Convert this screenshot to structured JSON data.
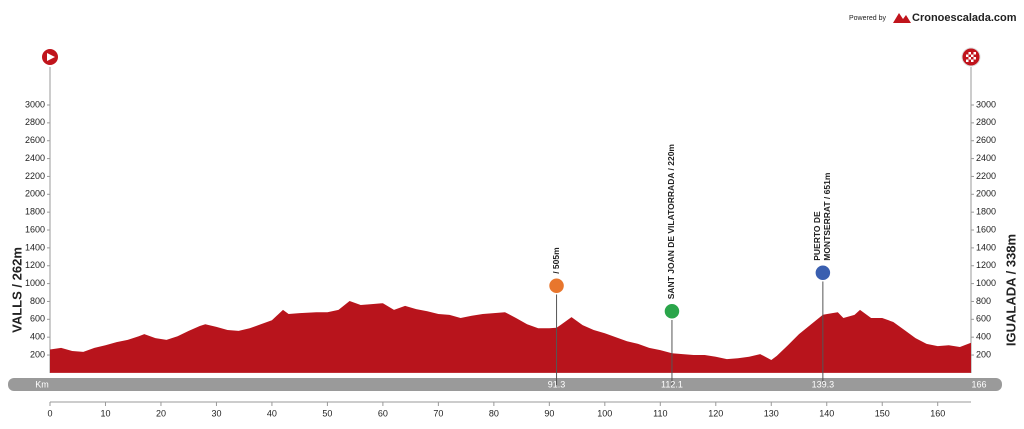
{
  "header": {
    "powered_by": "Powered by",
    "brand": "Cronoescalada.com"
  },
  "chart_data": {
    "type": "area",
    "start_label": "VALLS / 262m",
    "finish_label": "IGUALADA / 338m",
    "x_label": "Km",
    "color": "#b8141c",
    "x": [
      0,
      2,
      4,
      6,
      8,
      10,
      12,
      14,
      16,
      17,
      19,
      21,
      23,
      25,
      27,
      28,
      30,
      32,
      34,
      36,
      38,
      40,
      42,
      43,
      45,
      48,
      50,
      52,
      54,
      56,
      58,
      60,
      62,
      64,
      66,
      68,
      70,
      72,
      74,
      76,
      78,
      80,
      82,
      84,
      86,
      88,
      90,
      91.3,
      92,
      94,
      96,
      98,
      100,
      102,
      104,
      106,
      108,
      110,
      112.1,
      114,
      116,
      118,
      120,
      122,
      124,
      126,
      128,
      130,
      131,
      133,
      135,
      137,
      139.3,
      141,
      142,
      143,
      145,
      146,
      148,
      150,
      152,
      154,
      156,
      158,
      160,
      162,
      164,
      166
    ],
    "values": [
      262,
      280,
      245,
      235,
      280,
      310,
      345,
      370,
      410,
      435,
      390,
      370,
      410,
      470,
      525,
      545,
      515,
      480,
      470,
      500,
      545,
      590,
      705,
      660,
      670,
      680,
      680,
      705,
      805,
      760,
      770,
      780,
      705,
      750,
      715,
      690,
      660,
      650,
      615,
      640,
      660,
      670,
      680,
      615,
      545,
      500,
      500,
      505,
      535,
      625,
      535,
      480,
      445,
      400,
      355,
      325,
      280,
      255,
      220,
      210,
      200,
      200,
      180,
      155,
      165,
      180,
      210,
      145,
      190,
      310,
      435,
      535,
      651,
      670,
      680,
      615,
      650,
      705,
      615,
      615,
      570,
      480,
      390,
      325,
      300,
      310,
      290,
      338
    ],
    "xlim": [
      0,
      166
    ],
    "ylim": [
      0,
      3000
    ],
    "xticks": [
      0,
      10,
      20,
      30,
      40,
      50,
      60,
      70,
      80,
      90,
      100,
      110,
      120,
      130,
      140,
      150,
      160
    ],
    "yticks": [
      200,
      400,
      600,
      800,
      1000,
      1200,
      1400,
      1600,
      1800,
      2000,
      2200,
      2400,
      2600,
      2800,
      3000
    ],
    "markers": [
      {
        "km": 91.3,
        "label": [
          "/ 505m"
        ],
        "color": "#e8762d"
      },
      {
        "km": 112.1,
        "label": [
          "SANT JOAN DE VILATORRADA / 220m"
        ],
        "color": "#2aa54a"
      },
      {
        "km": 139.3,
        "label": [
          "PUERTO DE",
          "MONTSERRAT / 651m"
        ],
        "color": "#3a5fb0"
      }
    ],
    "end_km": 166
  }
}
